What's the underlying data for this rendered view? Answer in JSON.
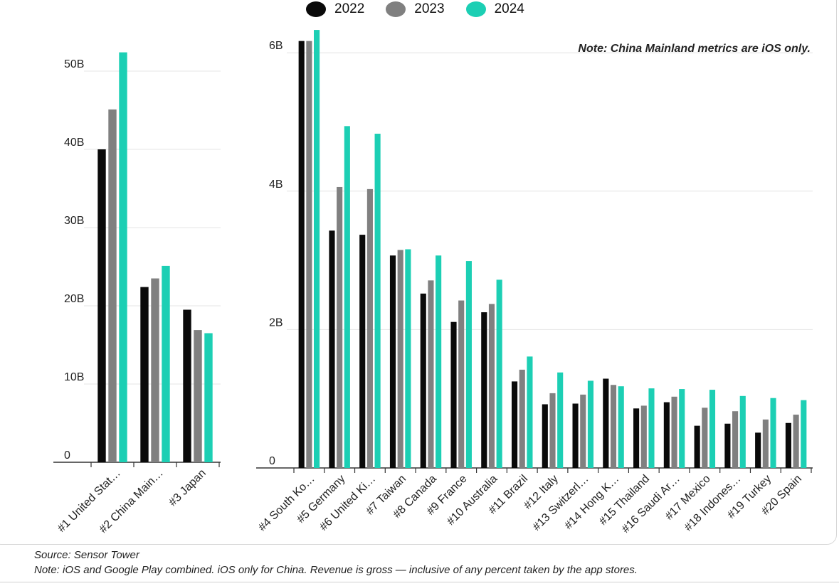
{
  "legend": [
    {
      "name": "2022",
      "color": "#0a0a0a"
    },
    {
      "name": "2023",
      "color": "#808080"
    },
    {
      "name": "2024",
      "color": "#1ccfb4"
    }
  ],
  "note_top": "Note: China Mainland metrics are iOS only.",
  "footer": {
    "source": "Source: Sensor Tower",
    "note": "Note: iOS and Google Play combined. iOS only for China. Revenue is gross — inclusive of any percent taken by the app stores."
  },
  "chart_data": [
    {
      "type": "bar",
      "title": "",
      "xlabel": "",
      "ylabel": "",
      "ylim": [
        0,
        55
      ],
      "yunit": "B",
      "yticks": [
        {
          "value": 0,
          "label": "0"
        },
        {
          "value": 10,
          "label": "10B"
        },
        {
          "value": 20,
          "label": "20B"
        },
        {
          "value": 30,
          "label": "30B"
        },
        {
          "value": 40,
          "label": "40B"
        },
        {
          "value": 50,
          "label": "50B"
        }
      ],
      "categories": [
        "#1 United Stat…",
        "#2 China Main…",
        "#3 Japan"
      ],
      "series": [
        {
          "name": "2022",
          "color": "#0a0a0a",
          "values": [
            40.0,
            22.4,
            19.5
          ]
        },
        {
          "name": "2023",
          "color": "#808080",
          "values": [
            45.1,
            23.5,
            16.9
          ]
        },
        {
          "name": "2024",
          "color": "#1ccfb4",
          "values": [
            52.4,
            25.1,
            16.5
          ]
        }
      ]
    },
    {
      "type": "bar",
      "title": "",
      "xlabel": "",
      "ylabel": "",
      "ylim": [
        0,
        6.3
      ],
      "yunit": "B",
      "yticks": [
        {
          "value": 0,
          "label": "0"
        },
        {
          "value": 2,
          "label": "2B"
        },
        {
          "value": 4,
          "label": "4B"
        },
        {
          "value": 6,
          "label": "6B"
        }
      ],
      "categories": [
        "#4 South Ko…",
        "#5 Germany",
        "#6 United Ki…",
        "#7 Taiwan",
        "#8 Canada",
        "#9 France",
        "#10 Australia",
        "#11 Brazil",
        "#12 Italy",
        "#13 Switzerl…",
        "#14 Hong K…",
        "#15 Thailand",
        "#16 Saudi Ar…",
        "#17 Mexico",
        "#18 Indones…",
        "#19 Turkey",
        "#20 Spain"
      ],
      "series": [
        {
          "name": "2022",
          "color": "#0a0a0a",
          "values": [
            6.17,
            3.43,
            3.37,
            3.07,
            2.52,
            2.11,
            2.25,
            1.25,
            0.92,
            0.93,
            1.29,
            0.86,
            0.95,
            0.61,
            0.64,
            0.51,
            0.65
          ]
        },
        {
          "name": "2023",
          "color": "#808080",
          "values": [
            6.17,
            4.06,
            4.03,
            3.15,
            2.71,
            2.42,
            2.37,
            1.42,
            1.08,
            1.06,
            1.2,
            0.9,
            1.03,
            0.87,
            0.82,
            0.7,
            0.77
          ]
        },
        {
          "name": "2024",
          "color": "#1ccfb4",
          "values": [
            6.33,
            4.94,
            4.83,
            3.16,
            3.07,
            2.99,
            2.72,
            1.61,
            1.38,
            1.26,
            1.18,
            1.15,
            1.14,
            1.13,
            1.04,
            1.01,
            0.98
          ]
        }
      ]
    }
  ]
}
